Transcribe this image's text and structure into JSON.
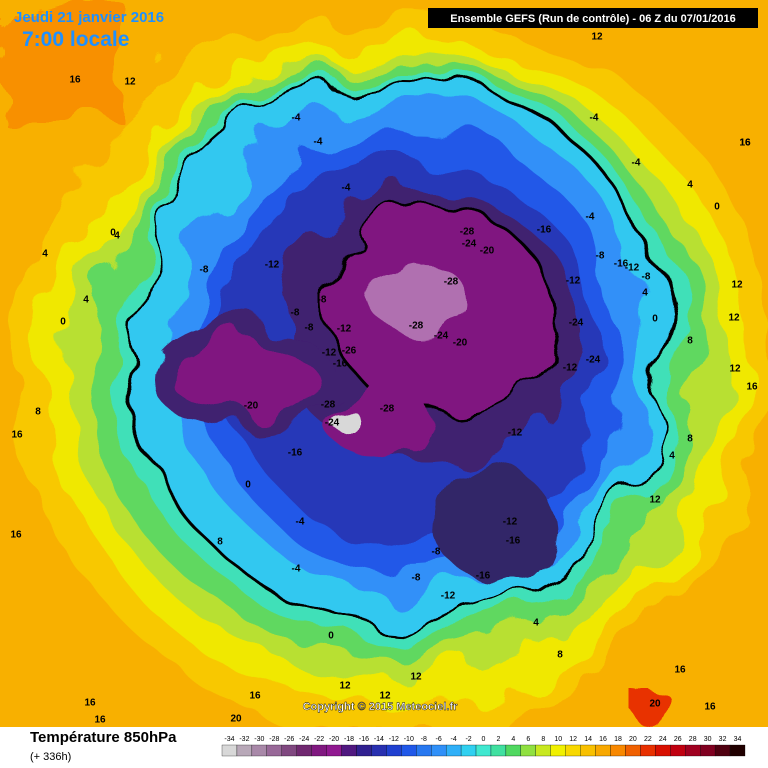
{
  "header": {
    "date": "Jeudi 21 janvier 2016",
    "time": "7:00 locale",
    "run": "Ensemble GEFS  (Run de contrôle)  -  06 Z du 07/01/2016"
  },
  "map": {
    "copyright": "Copyright © 2015 Meteociel.fr",
    "contour_labels": [
      16,
      12,
      12,
      -4,
      -4,
      -4,
      -4,
      -4,
      -4,
      0,
      4,
      16,
      -28,
      -24,
      -20,
      -16,
      -28,
      -28,
      -24,
      -20,
      -12,
      -24,
      -24,
      -12,
      -26,
      -12,
      -8,
      -8,
      -12,
      -16,
      -20,
      -28,
      -24,
      -28,
      -16,
      -12,
      -12,
      -16,
      -16,
      -12,
      -8,
      -8,
      -4,
      -4,
      0,
      0,
      4,
      4,
      8,
      8,
      16,
      16,
      16,
      16,
      20,
      20,
      16,
      12,
      12,
      12,
      12,
      8,
      4,
      12,
      12,
      12,
      16,
      16,
      8,
      16,
      16,
      8,
      4,
      0,
      4,
      -8,
      -12,
      -16,
      -8,
      -8,
      -8,
      -12,
      0,
      4,
      0
    ]
  },
  "legend": {
    "title": "Température 850hPa",
    "lead": "(+ 336h)",
    "scale": [
      -34,
      -32,
      -30,
      -28,
      -26,
      -24,
      -22,
      -20,
      -18,
      -16,
      -14,
      -12,
      -10,
      -8,
      -6,
      -4,
      -2,
      0,
      2,
      4,
      6,
      8,
      10,
      12,
      14,
      16,
      18,
      20,
      22,
      24,
      26,
      28,
      30,
      32,
      34
    ],
    "colors": [
      "#d8d8d8",
      "#b8a8b8",
      "#a888a8",
      "#986898",
      "#804880",
      "#702870",
      "#801880",
      "#901890",
      "#501880",
      "#302090",
      "#2830b0",
      "#2040d0",
      "#2058e8",
      "#2878f0",
      "#3090f8",
      "#30b0f8",
      "#30d0f0",
      "#40e8d0",
      "#40e0a0",
      "#50d860",
      "#90e040",
      "#c8e820",
      "#f0f000",
      "#f8d800",
      "#f8c000",
      "#f8a800",
      "#f88800",
      "#f06000",
      "#e83000",
      "#d81000",
      "#c00010",
      "#a00020",
      "#800020",
      "#500010",
      "#200000"
    ]
  }
}
